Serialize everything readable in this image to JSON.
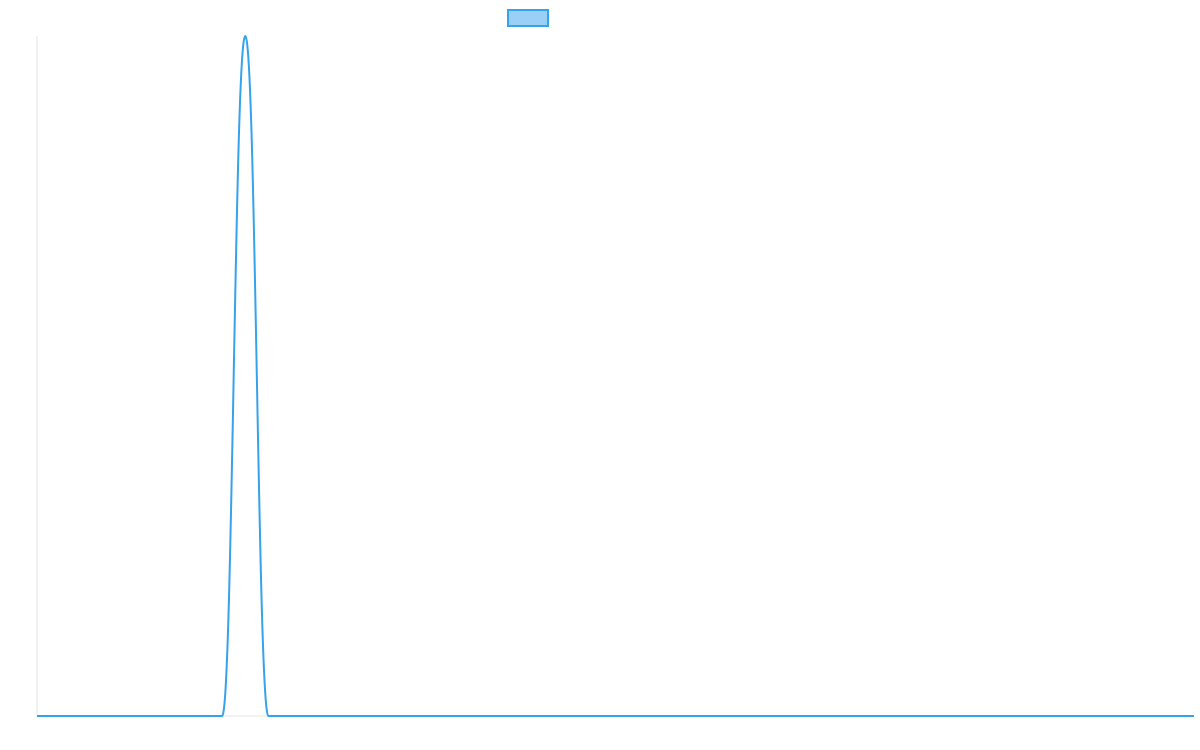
{
  "chart_data": {
    "type": "line",
    "title": "",
    "xlabel": "",
    "ylabel": "",
    "grid": false,
    "legend": {
      "position": "top",
      "entries": [
        {
          "label": ""
        }
      ]
    },
    "colors": {
      "line": "#36a2eb",
      "legend_fill": "#9ad0f5",
      "axis": "#e6e6e6"
    },
    "xlim": [
      0,
      50
    ],
    "ylim": [
      0,
      1
    ],
    "series": [
      {
        "x": [
          0,
          1,
          2,
          3,
          4,
          5,
          6,
          7,
          8,
          9,
          10,
          11,
          12,
          13,
          14,
          15,
          16,
          17,
          18,
          19,
          20,
          21,
          22,
          23,
          24,
          25,
          26,
          27,
          28,
          29,
          30,
          31,
          32,
          33,
          34,
          35,
          36,
          37,
          38,
          39,
          40,
          41,
          42,
          43,
          44,
          45,
          46,
          47,
          48,
          49,
          50
        ],
        "y": [
          0,
          0,
          0,
          0,
          0,
          0,
          0,
          0,
          0,
          1,
          0,
          0,
          0,
          0,
          0,
          0,
          0,
          0,
          0,
          0,
          0,
          0,
          0,
          0,
          0,
          0,
          0,
          0,
          0,
          0,
          0,
          0,
          0,
          0,
          0,
          0,
          0,
          0,
          0,
          0,
          0,
          0,
          0,
          0,
          0,
          0,
          0,
          0,
          0,
          0,
          0
        ]
      }
    ]
  }
}
